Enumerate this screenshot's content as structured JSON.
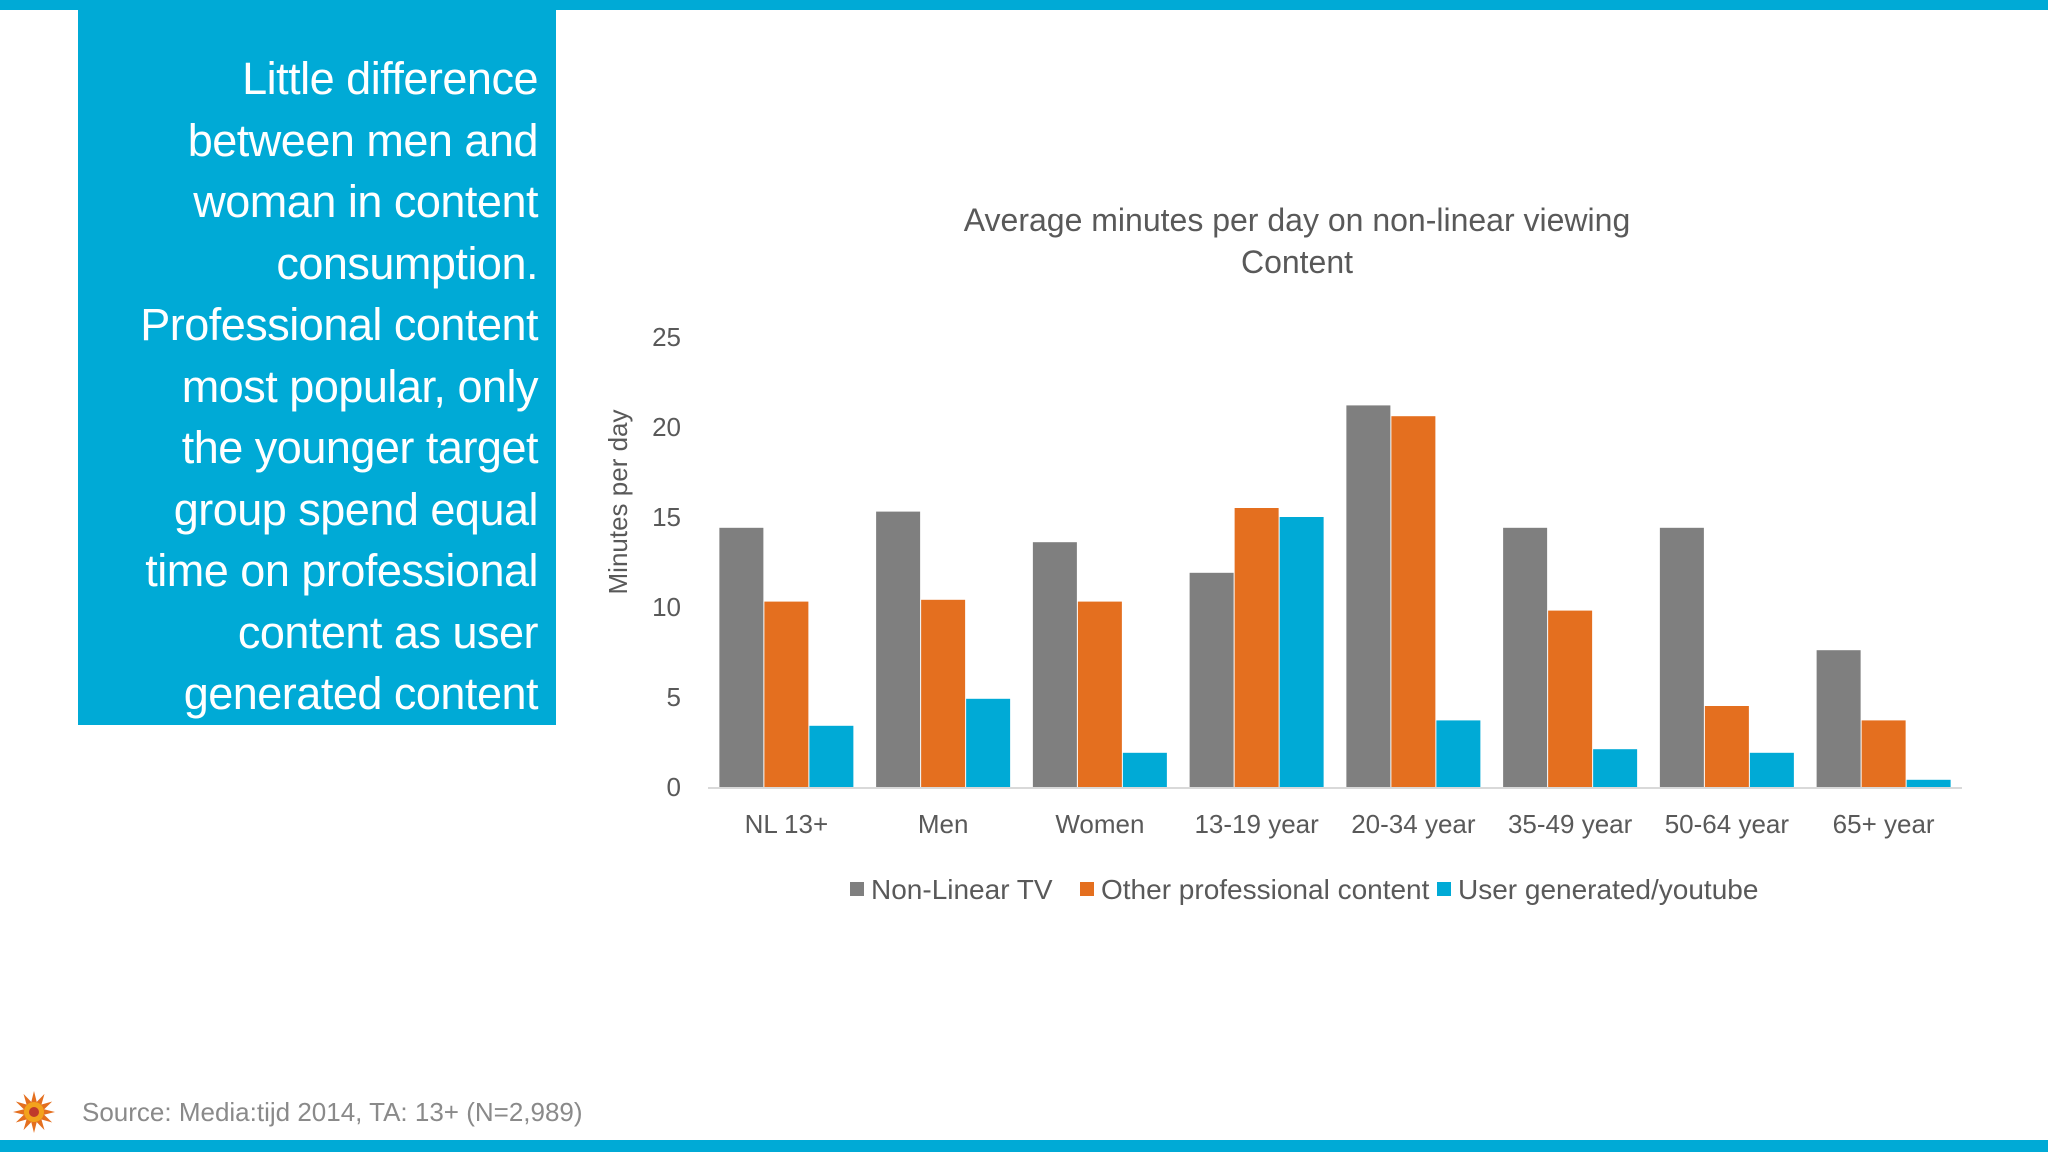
{
  "callout": {
    "lines": [
      "Little difference",
      "between men and",
      "woman in content",
      "consumption.",
      "Professional content",
      "most popular, only",
      "the younger target",
      "group spend equal",
      "time on professional",
      "content as user",
      "generated content"
    ]
  },
  "footer": {
    "source": "Source: Media:tijd 2014, TA: 13+ (N=2,989)",
    "logo_icon": "sun-logo-icon"
  },
  "colors": {
    "accent": "#00aad6",
    "non_linear_tv": "#7f7f7f",
    "other_professional": "#e46f1f",
    "user_generated": "#00aad6"
  },
  "chart_data": {
    "type": "bar",
    "title": [
      "Average minutes per day on non-linear viewing",
      "Content"
    ],
    "xlabel": "",
    "ylabel": "Minutes per day",
    "ylim": [
      0,
      25
    ],
    "yticks": [
      0,
      5,
      10,
      15,
      20,
      25
    ],
    "grid": false,
    "legend_position": "bottom",
    "categories": [
      "NL 13+",
      "Men",
      "Women",
      "13-19 year",
      "20-34 year",
      "35-49 year",
      "50-64 year",
      "65+ year"
    ],
    "series": [
      {
        "name": "Non-Linear TV",
        "color": "#7f7f7f",
        "values": [
          14.4,
          15.3,
          13.6,
          11.9,
          21.2,
          14.4,
          14.4,
          7.6
        ]
      },
      {
        "name": "Other professional content",
        "color": "#e46f1f",
        "values": [
          10.3,
          10.4,
          10.3,
          15.5,
          20.6,
          9.8,
          4.5,
          3.7
        ]
      },
      {
        "name": "User generated/youtube",
        "color": "#00aad6",
        "values": [
          3.4,
          4.9,
          1.9,
          15.0,
          3.7,
          2.1,
          1.9,
          0.4
        ]
      }
    ]
  }
}
